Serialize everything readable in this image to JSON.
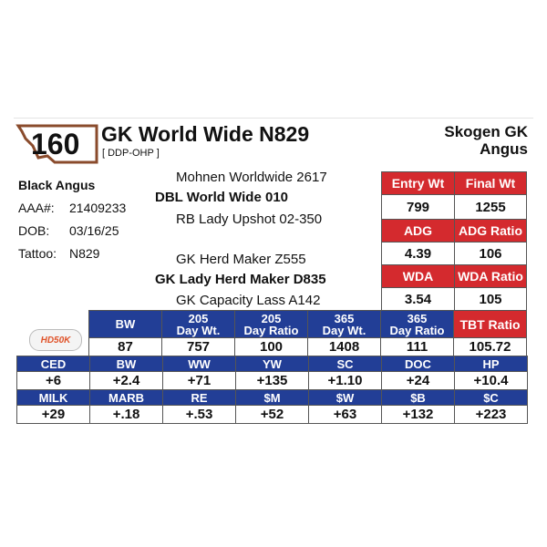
{
  "lot": "160",
  "title": "GK World Wide N829",
  "registration_tag": "[ DDP-OHP ]",
  "breeder": [
    "Skogen GK",
    "Angus"
  ],
  "info": {
    "breed": "Black Angus",
    "rows": [
      [
        "AAA#:",
        "21409233"
      ],
      [
        "DOB:",
        "03/16/25"
      ],
      [
        "Tattoo:",
        "N829"
      ]
    ]
  },
  "pedigree": [
    "Mohnen Worldwide 2617",
    "DBL World Wide 010",
    "RB Lady Upshot 02-350",
    "GK Herd Maker Z555",
    "GK Lady Herd Maker D835",
    "GK Capacity Lass A142"
  ],
  "ratios": {
    "rows": [
      [
        "Entry Wt",
        "Final Wt"
      ],
      [
        "799",
        "1255"
      ],
      [
        "ADG",
        "ADG Ratio"
      ],
      [
        "4.39",
        "106"
      ],
      [
        "WDA",
        "WDA Ratio"
      ],
      [
        "3.54",
        "105"
      ]
    ]
  },
  "logo": "HD50K",
  "weights": {
    "headers": [
      [
        "BW"
      ],
      [
        "205",
        "Day Wt."
      ],
      [
        "205",
        "Day Ratio"
      ],
      [
        "365",
        "Day Wt."
      ],
      [
        "365",
        "Day Ratio"
      ],
      [
        "TBT Ratio"
      ]
    ],
    "values": [
      "87",
      "757",
      "100",
      "1408",
      "111",
      "105.72"
    ]
  },
  "epds": [
    {
      "headers": [
        "CED",
        "BW",
        "WW",
        "YW",
        "SC",
        "DOC",
        "HP"
      ],
      "values": [
        "+6",
        "+2.4",
        "+71",
        "+135",
        "+1.10",
        "+24",
        "+10.4"
      ]
    },
    {
      "headers": [
        "MILK",
        "MARB",
        "RE",
        "$M",
        "$W",
        "$B",
        "$C"
      ],
      "values": [
        "+29",
        "+.18",
        "+.53",
        "+52",
        "+63",
        "+132",
        "+223"
      ]
    }
  ]
}
